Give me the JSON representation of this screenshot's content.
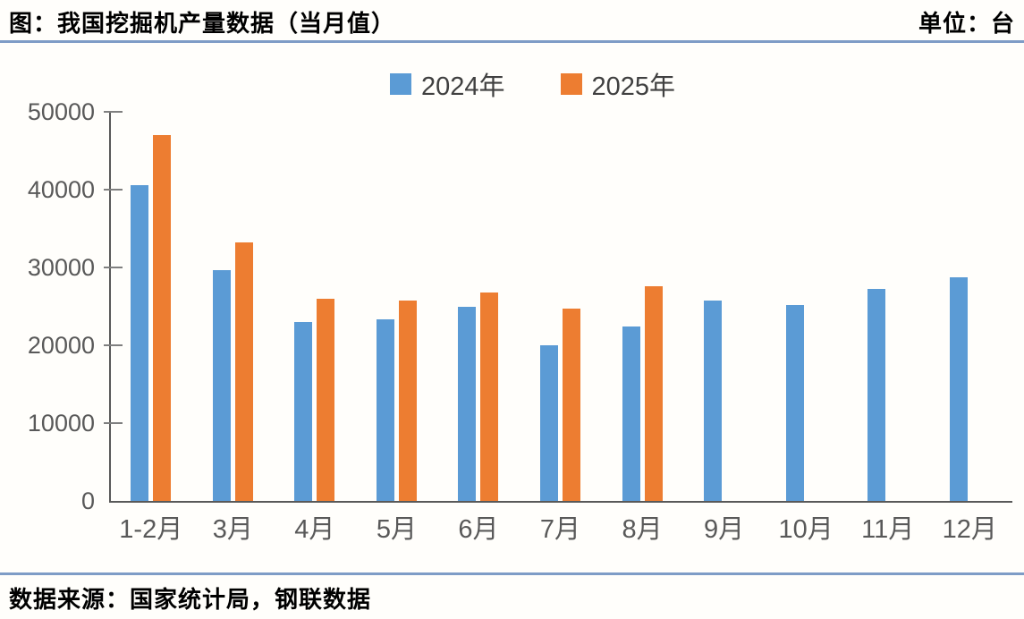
{
  "chart_data": {
    "type": "bar",
    "title": "图：我国挖掘机产量数据（当月值）",
    "unit_label": "单位：台",
    "source": "数据来源：国家统计局，钢联数据",
    "categories": [
      "1-2月",
      "3月",
      "4月",
      "5月",
      "6月",
      "7月",
      "8月",
      "9月",
      "10月",
      "11月",
      "12月"
    ],
    "series": [
      {
        "name": "2024年",
        "color": "#5b9bd5",
        "values": [
          40600,
          29700,
          23000,
          23300,
          24900,
          20000,
          22400,
          25700,
          25200,
          27200,
          28700
        ]
      },
      {
        "name": "2025年",
        "color": "#ed7d31",
        "values": [
          47000,
          33200,
          26000,
          25800,
          26800,
          24700,
          27600,
          null,
          null,
          null,
          null
        ]
      }
    ],
    "ylim": [
      0,
      50000
    ],
    "ytick_interval": 10000,
    "yticks": [
      "0",
      "10000",
      "20000",
      "30000",
      "40000",
      "50000"
    ],
    "grid": false,
    "legend_position": "top-center",
    "colors": {
      "axis": "#595959",
      "tick": "#7f7f7f",
      "divider": "#7e9cc6",
      "legend_text": "#404040"
    }
  }
}
